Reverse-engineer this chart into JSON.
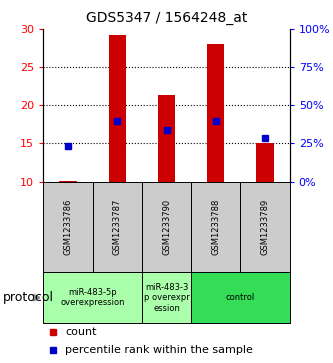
{
  "title": "GDS5347 / 1564248_at",
  "samples": [
    "GSM1233786",
    "GSM1233787",
    "GSM1233790",
    "GSM1233788",
    "GSM1233789"
  ],
  "bar_values": [
    10.1,
    29.2,
    21.3,
    28.1,
    15.1
  ],
  "bar_base": 10,
  "blue_marker_values": [
    14.6,
    17.9,
    16.8,
    17.9,
    15.7
  ],
  "left_ylim": [
    10,
    30
  ],
  "right_ylim": [
    0,
    100
  ],
  "left_yticks": [
    10,
    15,
    20,
    25,
    30
  ],
  "right_yticks": [
    0,
    25,
    50,
    75,
    100
  ],
  "right_yticklabels": [
    "0%",
    "25%",
    "50%",
    "75%",
    "100%"
  ],
  "bar_color": "#cc0000",
  "blue_color": "#0000cc",
  "groups": [
    {
      "label": "miR-483-5p\noverexpression",
      "indices": [
        0,
        1
      ],
      "color": "#aaffaa"
    },
    {
      "label": "miR-483-3\np overexpr\nession",
      "indices": [
        2
      ],
      "color": "#aaffaa"
    },
    {
      "label": "control",
      "indices": [
        3,
        4
      ],
      "color": "#33dd55"
    }
  ],
  "protocol_label": "protocol",
  "legend_count_label": "count",
  "legend_percentile_label": "percentile rank within the sample",
  "bg_color": "#ffffff",
  "sample_box_color": "#cccccc",
  "title_fontsize": 10,
  "tick_fontsize": 8,
  "sample_fontsize": 6,
  "legend_fontsize": 8
}
